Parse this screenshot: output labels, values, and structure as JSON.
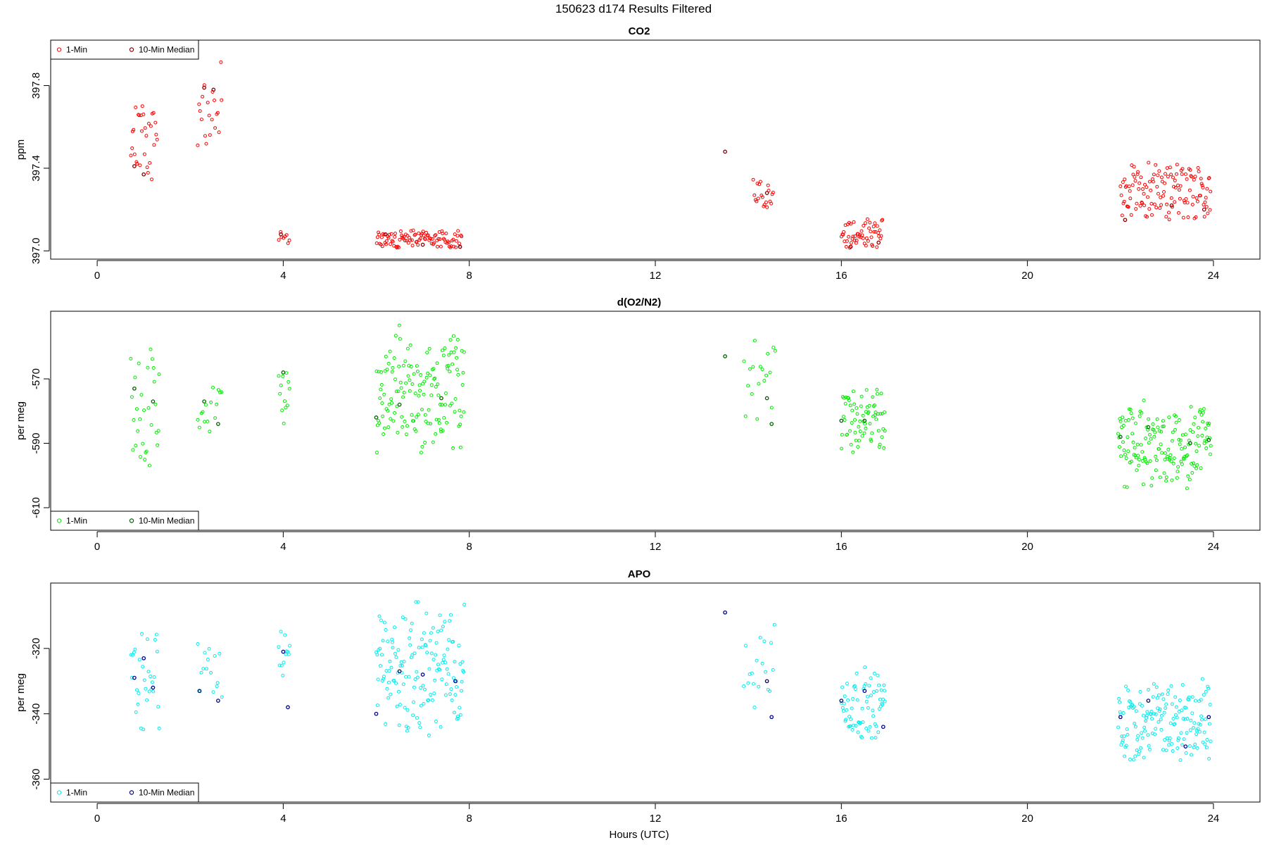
{
  "page": {
    "title": "150623   d174   Results Filtered"
  },
  "chart_data": {
    "shared": {
      "type": "scatter",
      "x_axis_label": "Hours (UTC)",
      "x_ticks": [
        0,
        4,
        8,
        12,
        16,
        20,
        24
      ],
      "xlim": [
        -1.0,
        25.0
      ]
    },
    "panels": [
      {
        "title": "CO2",
        "ylabel": "ppm",
        "ylim": [
          396.96,
          398.02
        ],
        "y_ticks": [
          397.0,
          397.4,
          397.8
        ],
        "y_tick_labels": [
          "397.0",
          "397.4",
          "397.8"
        ],
        "legend_position": "top-left",
        "series": [
          {
            "name": "1-Min",
            "color": "#ff0000",
            "segments": [
              {
                "x_start": 0.72,
                "x_end": 1.3,
                "n": 30,
                "y_min": 397.3,
                "y_max": 397.73
              },
              {
                "x_start": 2.15,
                "x_end": 2.7,
                "n": 20,
                "y_min": 397.45,
                "y_max": 397.97
              },
              {
                "x_start": 3.9,
                "x_end": 4.15,
                "n": 8,
                "y_min": 397.02,
                "y_max": 397.1
              },
              {
                "x_start": 6.0,
                "x_end": 7.85,
                "n": 100,
                "y_min": 397.0,
                "y_max": 397.11
              },
              {
                "x_start": 14.1,
                "x_end": 14.55,
                "n": 20,
                "y_min": 397.18,
                "y_max": 397.4
              },
              {
                "x_start": 16.0,
                "x_end": 16.9,
                "n": 55,
                "y_min": 397.0,
                "y_max": 397.17
              },
              {
                "x_start": 22.0,
                "x_end": 23.95,
                "n": 130,
                "y_min": 397.13,
                "y_max": 397.45
              }
            ]
          },
          {
            "name": "10-Min Median",
            "color": "#8b0000",
            "points": [
              [
                0.8,
                397.41
              ],
              [
                1.0,
                397.37
              ],
              [
                2.3,
                397.79
              ],
              [
                2.5,
                397.78
              ],
              [
                3.95,
                397.08
              ],
              [
                6.2,
                397.08
              ],
              [
                7.0,
                397.03
              ],
              [
                7.8,
                397.02
              ],
              [
                13.5,
                397.48
              ],
              [
                14.4,
                397.28
              ],
              [
                16.2,
                397.02
              ],
              [
                16.8,
                397.04
              ],
              [
                22.1,
                397.15
              ],
              [
                23.1,
                397.22
              ],
              [
                23.8,
                397.2
              ]
            ]
          }
        ]
      },
      {
        "title": "d(O2/N2)",
        "ylabel": "per meg",
        "ylim": [
          -617.0,
          -549.0
        ],
        "y_ticks": [
          -610,
          -590,
          -570
        ],
        "y_tick_labels": [
          "-610",
          "-590",
          "-570"
        ],
        "legend_position": "bottom-left",
        "series": [
          {
            "name": "1-Min",
            "color": "#00ee00",
            "segments": [
              {
                "x_start": 0.72,
                "x_end": 1.35,
                "n": 30,
                "y_min": -598,
                "y_max": -557
              },
              {
                "x_start": 2.15,
                "x_end": 2.7,
                "n": 15,
                "y_min": -589,
                "y_max": -567
              },
              {
                "x_start": 3.9,
                "x_end": 4.15,
                "n": 12,
                "y_min": -587,
                "y_max": -560
              },
              {
                "x_start": 6.0,
                "x_end": 7.9,
                "n": 150,
                "y_min": -596,
                "y_max": -553
              },
              {
                "x_start": 13.9,
                "x_end": 14.6,
                "n": 18,
                "y_min": -590,
                "y_max": -557
              },
              {
                "x_start": 16.0,
                "x_end": 16.95,
                "n": 70,
                "y_min": -596,
                "y_max": -569
              },
              {
                "x_start": 21.95,
                "x_end": 23.95,
                "n": 160,
                "y_min": -605,
                "y_max": -575
              }
            ]
          },
          {
            "name": "10-Min Median",
            "color": "#006400",
            "points": [
              [
                0.8,
                -573
              ],
              [
                1.2,
                -577
              ],
              [
                2.3,
                -577
              ],
              [
                2.6,
                -584
              ],
              [
                4.0,
                -568
              ],
              [
                6.0,
                -582
              ],
              [
                6.5,
                -578
              ],
              [
                7.4,
                -576
              ],
              [
                13.5,
                -563
              ],
              [
                14.4,
                -576
              ],
              [
                14.5,
                -584
              ],
              [
                16.0,
                -583
              ],
              [
                16.5,
                -583
              ],
              [
                22.0,
                -588
              ],
              [
                22.6,
                -585
              ],
              [
                23.5,
                -590
              ],
              [
                23.9,
                -589
              ]
            ]
          }
        ]
      },
      {
        "title": "APO",
        "ylabel": "per meg",
        "ylim": [
          -367.0,
          -300.0
        ],
        "y_ticks": [
          -360,
          -340,
          -320
        ],
        "y_tick_labels": [
          "-360",
          "-340",
          "-320"
        ],
        "legend_position": "bottom-left",
        "series": [
          {
            "name": "1-Min",
            "color": "#00eeee",
            "segments": [
              {
                "x_start": 0.72,
                "x_end": 1.35,
                "n": 30,
                "y_min": -349,
                "y_max": -305
              },
              {
                "x_start": 2.15,
                "x_end": 2.7,
                "n": 15,
                "y_min": -338,
                "y_max": -317
              },
              {
                "x_start": 3.9,
                "x_end": 4.15,
                "n": 12,
                "y_min": -339,
                "y_max": -311
              },
              {
                "x_start": 6.0,
                "x_end": 7.9,
                "n": 150,
                "y_min": -349,
                "y_max": -304
              },
              {
                "x_start": 13.9,
                "x_end": 14.6,
                "n": 18,
                "y_min": -343,
                "y_max": -306
              },
              {
                "x_start": 16.0,
                "x_end": 16.95,
                "n": 70,
                "y_min": -349,
                "y_max": -325
              },
              {
                "x_start": 21.95,
                "x_end": 23.95,
                "n": 160,
                "y_min": -356,
                "y_max": -328
              }
            ]
          },
          {
            "name": "10-Min Median",
            "color": "#00008b",
            "points": [
              [
                0.8,
                -329
              ],
              [
                1.0,
                -323
              ],
              [
                1.2,
                -332
              ],
              [
                2.2,
                -333
              ],
              [
                2.6,
                -336
              ],
              [
                4.0,
                -321
              ],
              [
                4.1,
                -338
              ],
              [
                6.0,
                -340
              ],
              [
                6.5,
                -327
              ],
              [
                7.0,
                -328
              ],
              [
                7.7,
                -330
              ],
              [
                13.5,
                -309
              ],
              [
                14.4,
                -330
              ],
              [
                14.5,
                -341
              ],
              [
                16.0,
                -336
              ],
              [
                16.5,
                -333
              ],
              [
                16.9,
                -344
              ],
              [
                22.0,
                -341
              ],
              [
                22.6,
                -336
              ],
              [
                23.4,
                -350
              ],
              [
                23.9,
                -341
              ]
            ]
          }
        ]
      }
    ]
  }
}
